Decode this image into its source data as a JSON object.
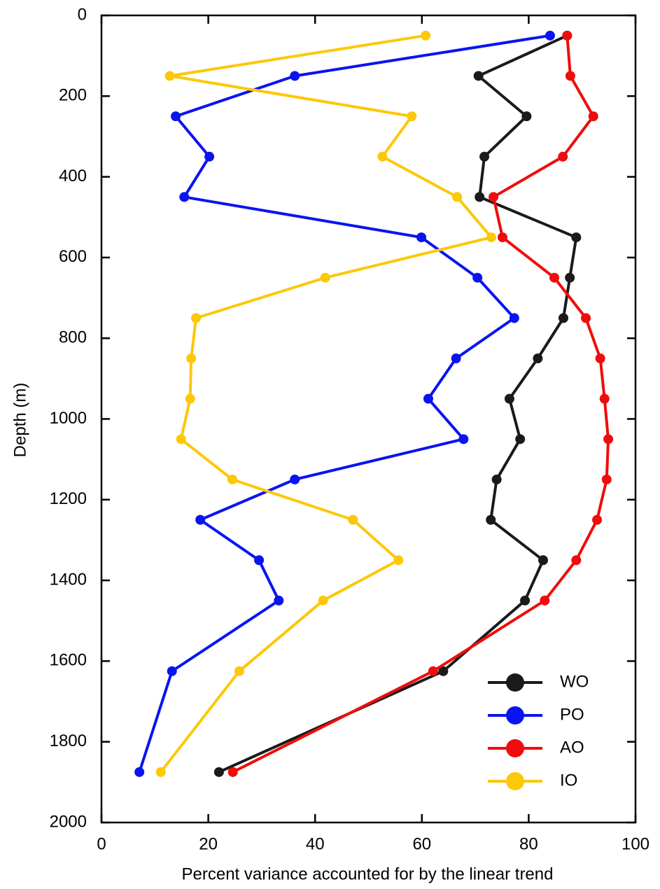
{
  "chart_data": {
    "type": "line",
    "x_label": "Percent variance accounted for by the linear trend",
    "y_label": "Depth (m)",
    "y": [
      50,
      150,
      250,
      350,
      450,
      550,
      650,
      750,
      850,
      950,
      1050,
      1150,
      1250,
      1350,
      1450,
      1625,
      1875
    ],
    "series": [
      {
        "name": "WO",
        "color": "#1a1a1a",
        "values": [
          87.2,
          70.6,
          79.6,
          71.7,
          70.8,
          88.9,
          87.7,
          86.5,
          81.7,
          76.4,
          78.4,
          74.0,
          72.9,
          82.7,
          79.3,
          64.0,
          22.0
        ]
      },
      {
        "name": "PO",
        "color": "#0a14f0",
        "values": [
          84.0,
          36.2,
          13.9,
          20.2,
          15.5,
          59.9,
          70.4,
          77.3,
          66.4,
          61.2,
          67.8,
          36.2,
          18.5,
          29.5,
          33.2,
          13.2,
          7.1
        ]
      },
      {
        "name": "AO",
        "color": "#f00c0c",
        "values": [
          87.2,
          87.8,
          92.1,
          86.4,
          73.4,
          75.1,
          84.8,
          90.7,
          93.4,
          94.2,
          94.9,
          94.6,
          92.8,
          88.9,
          83.0,
          62.1,
          24.6
        ]
      },
      {
        "name": "IO",
        "color": "#fcc808",
        "values": [
          60.7,
          12.8,
          58.1,
          52.6,
          66.6,
          73.0,
          41.9,
          17.7,
          16.8,
          16.6,
          14.9,
          24.5,
          47.1,
          55.6,
          41.5,
          25.8,
          11.1
        ]
      }
    ],
    "xlim": [
      0,
      100
    ],
    "xticks": [
      0,
      20,
      40,
      60,
      80,
      100
    ],
    "ylim": [
      0,
      2000
    ],
    "yticks": [
      0,
      200,
      400,
      600,
      800,
      1000,
      1200,
      1400,
      1600,
      1800,
      2000
    ],
    "y_inverted": true,
    "legend": "lower right"
  }
}
